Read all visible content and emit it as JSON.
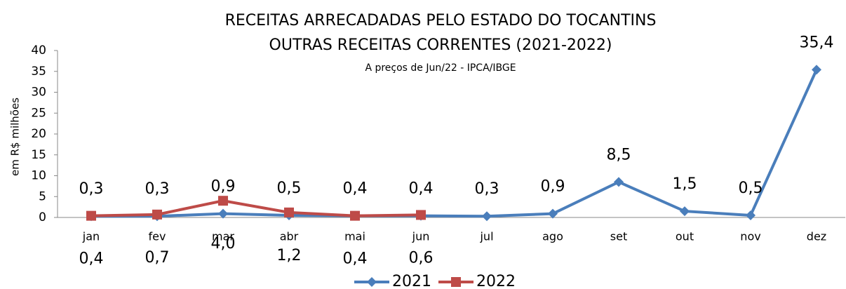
{
  "chart_data": {
    "type": "line",
    "title": "RECEITAS ARRECADADAS PELO ESTADO DO TOCANTINS",
    "subtitle": "OUTRAS RECEITAS CORRENTES (2021-2022)",
    "note": "A preços de Jun/22 - IPCA/IBGE",
    "y_label": "em R$ milhões",
    "categories": [
      "jan",
      "fev",
      "mar",
      "abr",
      "mai",
      "jun",
      "jul",
      "ago",
      "set",
      "out",
      "nov",
      "dez"
    ],
    "series": [
      {
        "name": "2021",
        "color": "#4a7ebb",
        "marker": "diamond",
        "values": [
          0.3,
          0.3,
          0.9,
          0.5,
          0.4,
          0.4,
          0.3,
          0.9,
          8.5,
          1.5,
          0.5,
          35.4
        ],
        "value_labels": [
          "0,3",
          "0,3",
          "0,9",
          "0,5",
          "0,4",
          "0,4",
          "0,3",
          "0,9",
          "8,5",
          "1,5",
          "0,5",
          "35,4"
        ]
      },
      {
        "name": "2022",
        "color": "#be4b48",
        "marker": "square",
        "values": [
          0.4,
          0.7,
          4.0,
          1.2,
          0.4,
          0.6,
          null,
          null,
          null,
          null,
          null,
          null
        ],
        "value_labels": [
          "0,4",
          "0,7",
          "4,0",
          "1,2",
          "0,4",
          "0,6",
          null,
          null,
          null,
          null,
          null,
          null
        ]
      }
    ],
    "ylim": [
      0,
      40
    ],
    "yticks": [
      0,
      5,
      10,
      15,
      20,
      25,
      30,
      35,
      40
    ],
    "legend": "bottom"
  }
}
